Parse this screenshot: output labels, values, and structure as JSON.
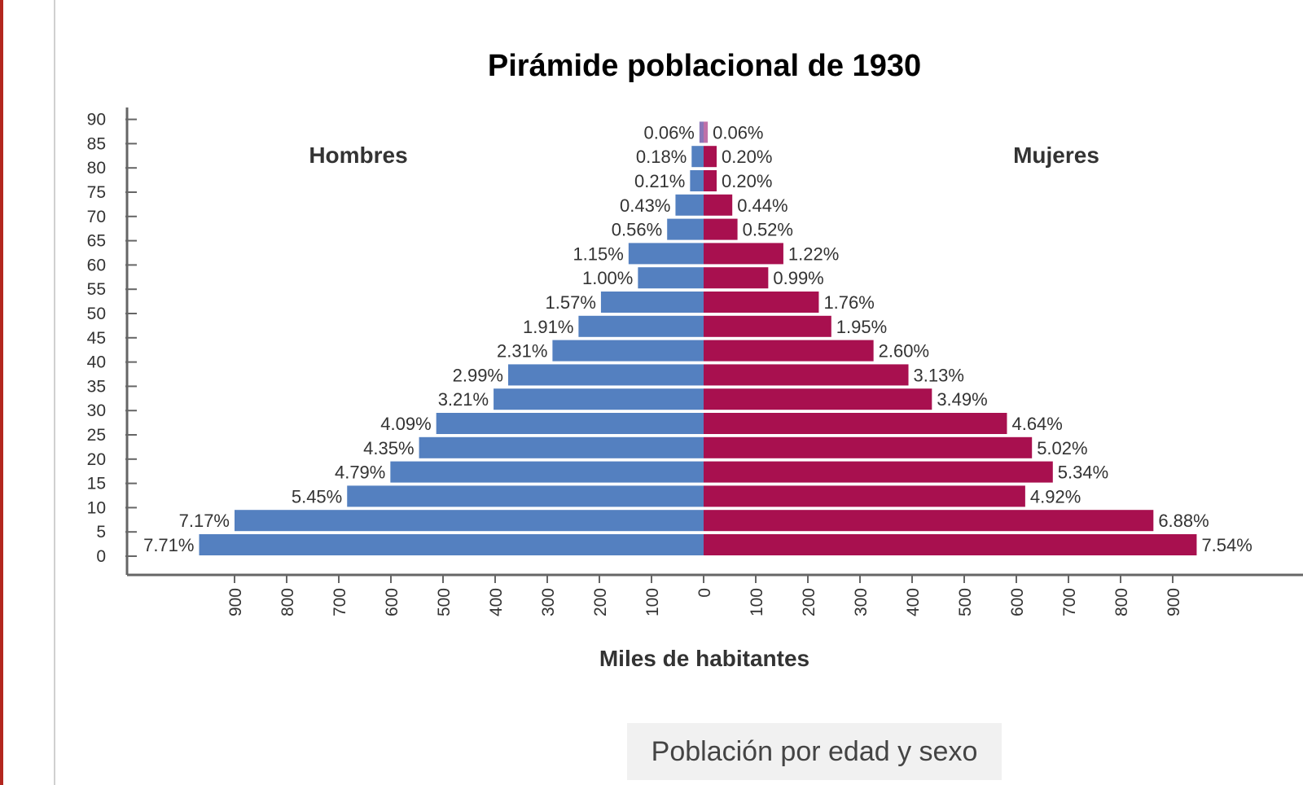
{
  "colors": {
    "male": "#5480c0",
    "female": "#a8104f",
    "top_male": "#8a76b8",
    "top_female": "#c070a8",
    "axis": "#666666",
    "text": "#333333"
  },
  "caption": "Población por edad y sexo",
  "chart_data": {
    "type": "bar",
    "orientation": "horizontal",
    "title": "Pirámide poblacional de 1930",
    "xlabel": "Miles de habitantes",
    "y_ticks": [
      "0",
      "5",
      "10",
      "15",
      "20",
      "25",
      "30",
      "35",
      "40",
      "45",
      "50",
      "55",
      "60",
      "65",
      "70",
      "75",
      "80",
      "85",
      "90"
    ],
    "x_ticks_left": [
      "900",
      "800",
      "700",
      "600",
      "500",
      "400",
      "300",
      "200",
      "100"
    ],
    "x_ticks_right": [
      "0",
      "100",
      "200",
      "300",
      "400",
      "500",
      "600",
      "700",
      "800",
      "900"
    ],
    "x_tick_values_left": [
      900,
      800,
      700,
      600,
      500,
      400,
      300,
      200,
      100
    ],
    "x_tick_values_right": [
      0,
      100,
      200,
      300,
      400,
      500,
      600,
      700,
      800,
      900
    ],
    "xlim": [
      -1000,
      1000
    ],
    "series": [
      {
        "name": "Hombres",
        "pct_labels": [
          "7.71%",
          "7.17%",
          "5.45%",
          "4.79%",
          "4.35%",
          "4.09%",
          "3.21%",
          "2.99%",
          "2.31%",
          "1.91%",
          "1.57%",
          "1.00%",
          "1.15%",
          "0.56%",
          "0.43%",
          "0.21%",
          "0.18%",
          "0.06%"
        ],
        "values": [
          968,
          900,
          684,
          601,
          546,
          513,
          403,
          375,
          290,
          240,
          197,
          126,
          144,
          70,
          54,
          26,
          23,
          8
        ]
      },
      {
        "name": "Mujeres",
        "pct_labels": [
          "7.54%",
          "6.88%",
          "4.92%",
          "5.34%",
          "5.02%",
          "4.64%",
          "3.49%",
          "3.13%",
          "2.60%",
          "1.95%",
          "1.76%",
          "0.99%",
          "1.22%",
          "0.52%",
          "0.44%",
          "0.20%",
          "0.20%",
          "0.06%"
        ],
        "values": [
          946,
          863,
          617,
          670,
          630,
          582,
          438,
          393,
          326,
          245,
          221,
          124,
          153,
          65,
          55,
          25,
          25,
          8
        ]
      }
    ],
    "grid": false
  }
}
